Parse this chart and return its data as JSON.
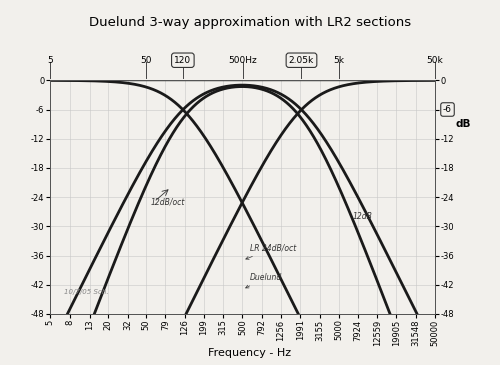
{
  "title": "Duelund 3-way approximation with LR2 sections",
  "xlabel": "Frequency - Hz",
  "ylabel_right": "dB",
  "freq_min": 5,
  "freq_max": 50000,
  "db_min": -48,
  "db_max": 0,
  "db_ticks": [
    0,
    -6,
    -12,
    -18,
    -24,
    -30,
    -36,
    -42,
    -48
  ],
  "xf_low": 120,
  "xf_high": 2050,
  "xtick_vals": [
    5,
    8,
    13,
    20,
    32,
    50,
    79,
    126,
    199,
    315,
    500,
    792,
    1256,
    1991,
    3155,
    5000,
    7924,
    12559,
    19905,
    31548,
    50000
  ],
  "xtick_labels": [
    "5",
    "8",
    "13",
    "20",
    "32",
    "50",
    "79",
    "126",
    "199",
    "315",
    "500",
    "792",
    "1256",
    "1991",
    "3155",
    "5000",
    "7924",
    "12559",
    "19905",
    "31548",
    "50000"
  ],
  "top_labels": [
    {
      "freq": 5,
      "text": "5",
      "circled": false
    },
    {
      "freq": 50,
      "text": "50",
      "circled": false
    },
    {
      "freq": 120,
      "text": "120",
      "circled": true
    },
    {
      "freq": 500,
      "text": "500Hz",
      "circled": false
    },
    {
      "freq": 2050,
      "text": "2.05k",
      "circled": true
    },
    {
      "freq": 5000,
      "text": "5k",
      "circled": false
    },
    {
      "freq": 50000,
      "text": "50k",
      "circled": false
    }
  ],
  "bg_color": "#f2f0ec",
  "line_color": "#1a1a1a",
  "grid_color": "#c8c8c8",
  "title_fontsize": 9.5,
  "tick_fontsize": 6,
  "xlabel_fontsize": 8
}
